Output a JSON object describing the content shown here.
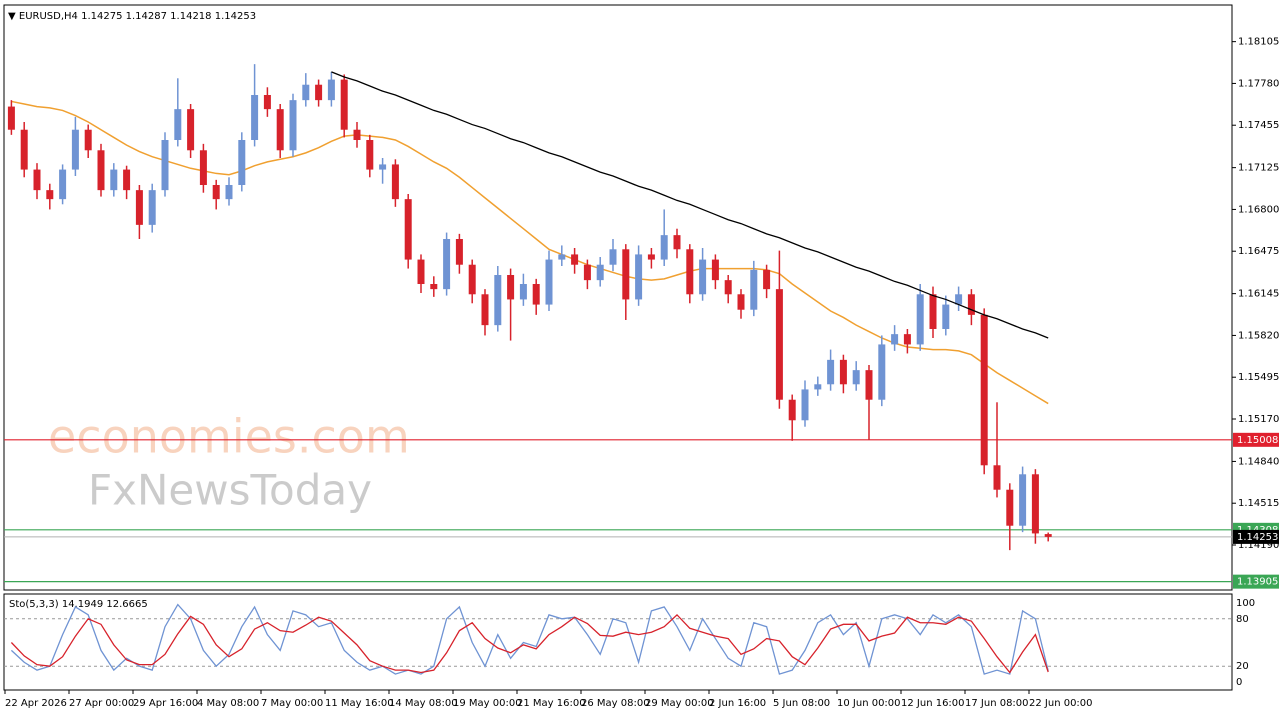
{
  "chart_data": [
    {
      "type": "candlestick",
      "symbol": "EURUSD,H4",
      "categories": [
        "22 Apr 2026",
        null,
        null,
        null,
        null,
        "27 Apr 00:00",
        null,
        null,
        null,
        null,
        "29 Apr 16:00",
        null,
        null,
        null,
        null,
        "4 May 08:00",
        null,
        null,
        null,
        null,
        "7 May 00:00",
        null,
        null,
        null,
        null,
        "11 May 16:00",
        null,
        null,
        null,
        null,
        "14 May 08:00",
        null,
        null,
        null,
        null,
        "19 May 00:00",
        null,
        null,
        null,
        null,
        "21 May 16:00",
        null,
        null,
        null,
        null,
        "26 May 08:00",
        null,
        null,
        null,
        null,
        "29 May 00:00",
        null,
        null,
        null,
        null,
        "2 Jun 16:00",
        null,
        null,
        null,
        null,
        "5 Jun 08:00",
        null,
        null,
        null,
        null,
        "10 Jun 00:00",
        null,
        null,
        null,
        null,
        "12 Jun 16:00",
        null,
        null,
        null,
        null,
        "17 Jun 08:00",
        null,
        null,
        null,
        null,
        "22 Jun 00:00",
        null
      ],
      "ohlc": [
        [
          1.176,
          1.1765,
          1.1738,
          1.1742
        ],
        [
          1.1742,
          1.1748,
          1.1705,
          1.1711
        ],
        [
          1.1711,
          1.1716,
          1.1688,
          1.1695
        ],
        [
          1.1695,
          1.17,
          1.168,
          1.1688
        ],
        [
          1.1688,
          1.1715,
          1.1684,
          1.1711
        ],
        [
          1.1711,
          1.1752,
          1.1706,
          1.1742
        ],
        [
          1.1742,
          1.1746,
          1.172,
          1.1726
        ],
        [
          1.1726,
          1.1731,
          1.169,
          1.1695
        ],
        [
          1.1695,
          1.1716,
          1.169,
          1.1711
        ],
        [
          1.1711,
          1.1714,
          1.1688,
          1.1695
        ],
        [
          1.1695,
          1.1699,
          1.1657,
          1.1668
        ],
        [
          1.1668,
          1.17,
          1.1662,
          1.1695
        ],
        [
          1.1695,
          1.174,
          1.169,
          1.1734
        ],
        [
          1.1734,
          1.1782,
          1.1729,
          1.1758
        ],
        [
          1.1758,
          1.1762,
          1.172,
          1.1726
        ],
        [
          1.1726,
          1.1731,
          1.1693,
          1.1699
        ],
        [
          1.1699,
          1.1703,
          1.168,
          1.1688
        ],
        [
          1.1688,
          1.1705,
          1.1683,
          1.1699
        ],
        [
          1.1699,
          1.174,
          1.1694,
          1.1734
        ],
        [
          1.1734,
          1.1793,
          1.1729,
          1.1769
        ],
        [
          1.1769,
          1.1775,
          1.1752,
          1.1758
        ],
        [
          1.1758,
          1.1762,
          1.172,
          1.1726
        ],
        [
          1.1726,
          1.177,
          1.1721,
          1.1765
        ],
        [
          1.1765,
          1.1786,
          1.176,
          1.1777
        ],
        [
          1.1777,
          1.1781,
          1.176,
          1.1765
        ],
        [
          1.1765,
          1.1787,
          1.176,
          1.1781
        ],
        [
          1.1781,
          1.1785,
          1.1736,
          1.1742
        ],
        [
          1.1742,
          1.1748,
          1.1728,
          1.1734
        ],
        [
          1.1734,
          1.1738,
          1.1705,
          1.1711
        ],
        [
          1.1711,
          1.172,
          1.17,
          1.1715
        ],
        [
          1.1715,
          1.1719,
          1.1682,
          1.1688
        ],
        [
          1.1688,
          1.1692,
          1.1634,
          1.1641
        ],
        [
          1.1641,
          1.1645,
          1.1615,
          1.1622
        ],
        [
          1.1622,
          1.1628,
          1.1612,
          1.1618
        ],
        [
          1.1618,
          1.1662,
          1.1613,
          1.1657
        ],
        [
          1.1657,
          1.1661,
          1.163,
          1.1637
        ],
        [
          1.1637,
          1.1641,
          1.1607,
          1.1614
        ],
        [
          1.1614,
          1.1618,
          1.1582,
          1.159
        ],
        [
          1.159,
          1.1636,
          1.1585,
          1.1629
        ],
        [
          1.1629,
          1.1634,
          1.1578,
          1.161
        ],
        [
          1.161,
          1.163,
          1.1605,
          1.1622
        ],
        [
          1.1622,
          1.1626,
          1.1598,
          1.1606
        ],
        [
          1.1606,
          1.1648,
          1.1601,
          1.1641
        ],
        [
          1.1641,
          1.1652,
          1.1636,
          1.1645
        ],
        [
          1.1645,
          1.165,
          1.163,
          1.1637
        ],
        [
          1.1637,
          1.1641,
          1.1618,
          1.1625
        ],
        [
          1.1625,
          1.1643,
          1.162,
          1.1637
        ],
        [
          1.1637,
          1.1657,
          1.1632,
          1.1649
        ],
        [
          1.1649,
          1.1653,
          1.1594,
          1.161
        ],
        [
          1.161,
          1.1652,
          1.1605,
          1.1645
        ],
        [
          1.1645,
          1.165,
          1.1634,
          1.1641
        ],
        [
          1.1641,
          1.168,
          1.1636,
          1.166
        ],
        [
          1.166,
          1.1665,
          1.1642,
          1.1649
        ],
        [
          1.1649,
          1.1653,
          1.1607,
          1.1614
        ],
        [
          1.1614,
          1.165,
          1.1609,
          1.1641
        ],
        [
          1.1641,
          1.1645,
          1.1618,
          1.1625
        ],
        [
          1.1625,
          1.1629,
          1.1607,
          1.1614
        ],
        [
          1.1614,
          1.1618,
          1.1595,
          1.1602
        ],
        [
          1.1602,
          1.164,
          1.1597,
          1.1633
        ],
        [
          1.1633,
          1.1637,
          1.1611,
          1.1618
        ],
        [
          1.1618,
          1.1648,
          1.1525,
          1.1532
        ],
        [
          1.1532,
          1.1536,
          1.15,
          1.1516
        ],
        [
          1.1516,
          1.1547,
          1.1511,
          1.154
        ],
        [
          1.154,
          1.155,
          1.1535,
          1.1544
        ],
        [
          1.1544,
          1.1571,
          1.1539,
          1.1563
        ],
        [
          1.1563,
          1.1567,
          1.1537,
          1.1544
        ],
        [
          1.1544,
          1.1562,
          1.1539,
          1.1555
        ],
        [
          1.1555,
          1.1559,
          1.1501,
          1.1532
        ],
        [
          1.1532,
          1.1582,
          1.1527,
          1.1575
        ],
        [
          1.1575,
          1.159,
          1.157,
          1.1583
        ],
        [
          1.1583,
          1.1587,
          1.1568,
          1.1575
        ],
        [
          1.1575,
          1.1622,
          1.157,
          1.1614
        ],
        [
          1.1614,
          1.162,
          1.158,
          1.1587
        ],
        [
          1.1587,
          1.1613,
          1.1582,
          1.1606
        ],
        [
          1.1606,
          1.162,
          1.1601,
          1.1614
        ],
        [
          1.1614,
          1.1618,
          1.159,
          1.1598
        ],
        [
          1.1598,
          1.1603,
          1.1474,
          1.1481
        ],
        [
          1.1481,
          1.153,
          1.1456,
          1.1462
        ],
        [
          1.1462,
          1.1467,
          1.1415,
          1.1434
        ],
        [
          1.1434,
          1.148,
          1.1429,
          1.1474
        ],
        [
          1.1474,
          1.1478,
          1.142,
          1.1428
        ],
        [
          1.14275,
          1.14287,
          1.14218,
          1.14253
        ]
      ],
      "up_color": "#6f93d3",
      "down_color": "#d7222b",
      "ma": {
        "color": "#f0a030",
        "values": [
          1.1764,
          1.1762,
          1.176,
          1.1759,
          1.1757,
          1.1753,
          1.1748,
          1.1742,
          1.1736,
          1.173,
          1.1725,
          1.1721,
          1.1718,
          1.1715,
          1.1712,
          1.171,
          1.1708,
          1.1707,
          1.171,
          1.1714,
          1.1717,
          1.1719,
          1.1721,
          1.1724,
          1.1728,
          1.1733,
          1.1737,
          1.1738,
          1.1737,
          1.1736,
          1.1734,
          1.1729,
          1.1723,
          1.1717,
          1.1712,
          1.1705,
          1.1697,
          1.1689,
          1.1681,
          1.1673,
          1.1665,
          1.1657,
          1.1649,
          1.1645,
          1.1641,
          1.1637,
          1.1634,
          1.1631,
          1.1628,
          1.1626,
          1.1625,
          1.1626,
          1.1629,
          1.1632,
          1.1634,
          1.1634,
          1.1634,
          1.1634,
          1.1634,
          1.1633,
          1.163,
          1.1622,
          1.1615,
          1.1608,
          1.1601,
          1.1596,
          1.159,
          1.1585,
          1.158,
          1.1576,
          1.1573,
          1.1572,
          1.1571,
          1.1571,
          1.157,
          1.1567,
          1.156,
          1.1553,
          1.1547,
          1.1541,
          1.1535,
          1.1529
        ]
      },
      "trendline": {
        "color": "#000000",
        "values": [
          null,
          null,
          null,
          null,
          null,
          null,
          null,
          null,
          null,
          null,
          null,
          null,
          null,
          null,
          null,
          null,
          null,
          null,
          null,
          null,
          null,
          null,
          null,
          null,
          null,
          1.1787,
          1.1783,
          1.178,
          1.1776,
          1.1772,
          1.1769,
          1.1765,
          1.1761,
          1.1757,
          1.1754,
          1.175,
          1.1746,
          1.1743,
          1.1739,
          1.1735,
          1.1732,
          1.1728,
          1.1724,
          1.1721,
          1.1717,
          1.1713,
          1.1709,
          1.1706,
          1.1702,
          1.1698,
          1.1695,
          1.1691,
          1.1687,
          1.1684,
          1.168,
          1.1676,
          1.1672,
          1.1669,
          1.1665,
          1.1661,
          1.1658,
          1.1654,
          1.165,
          1.1647,
          1.1643,
          1.1639,
          1.1635,
          1.1632,
          1.1628,
          1.1624,
          1.1621,
          1.1617,
          1.1613,
          1.161,
          1.1606,
          1.1602,
          1.1598,
          1.1595,
          1.1591,
          1.1587,
          1.1584,
          1.158
        ]
      },
      "levels": [
        {
          "value": 1.15008,
          "color": "#e0202e"
        },
        {
          "value": 1.14308,
          "color": "#3aa655"
        },
        {
          "value": 1.13905,
          "color": "#3aa655"
        }
      ],
      "ylim": [
        1.1384,
        1.1839
      ],
      "yticks": [
        1.18105,
        {
          "value": 1.1778,
          "label": "1.17780"
        },
        1.17455,
        1.17125,
        {
          "value": 1.168,
          "label": "1.16800"
        },
        1.16475,
        1.16145,
        {
          "value": 1.1582,
          "label": "1.15820"
        },
        1.15495,
        {
          "value": 1.1517,
          "label": "1.15170"
        },
        {
          "value": 1.1484,
          "label": "1.14840"
        },
        1.14515,
        {
          "value": 1.1419,
          "label": "1.14190"
        }
      ],
      "watermark": [
        "economies.com",
        "FxNewsToday"
      ]
    },
    {
      "type": "line",
      "name": "Sto(5,3,3)",
      "series": [
        {
          "color": "#6f93d3",
          "values": [
            40,
            25,
            15,
            20,
            60,
            95,
            85,
            40,
            15,
            30,
            20,
            15,
            70,
            98,
            80,
            40,
            20,
            35,
            70,
            95,
            60,
            40,
            90,
            85,
            70,
            75,
            40,
            25,
            15,
            20,
            10,
            15,
            10,
            20,
            80,
            95,
            50,
            20,
            60,
            30,
            50,
            45,
            85,
            80,
            82,
            60,
            35,
            80,
            75,
            25,
            90,
            95,
            70,
            40,
            80,
            55,
            30,
            20,
            75,
            70,
            10,
            15,
            40,
            75,
            85,
            60,
            75,
            20,
            80,
            85,
            80,
            60,
            85,
            75,
            85,
            70,
            10,
            15,
            10,
            90,
            80,
            14.1949
          ]
        },
        {
          "color": "#d7222b",
          "values": [
            50,
            33,
            22,
            20,
            32,
            58,
            80,
            73,
            47,
            28,
            22,
            22,
            35,
            61,
            83,
            73,
            47,
            32,
            42,
            67,
            75,
            65,
            63,
            72,
            82,
            77,
            62,
            47,
            27,
            20,
            15,
            15,
            12,
            15,
            37,
            65,
            75,
            55,
            43,
            37,
            47,
            42,
            60,
            70,
            82,
            74,
            59,
            58,
            63,
            60,
            63,
            70,
            85,
            68,
            63,
            58,
            55,
            35,
            42,
            55,
            52,
            32,
            22,
            43,
            67,
            73,
            73,
            52,
            58,
            62,
            82,
            75,
            75,
            73,
            82,
            77,
            55,
            32,
            12,
            38,
            60,
            12.6665
          ]
        }
      ],
      "ylim": [
        0,
        100
      ],
      "yticks": [
        100,
        80,
        20,
        0
      ]
    }
  ]
}
